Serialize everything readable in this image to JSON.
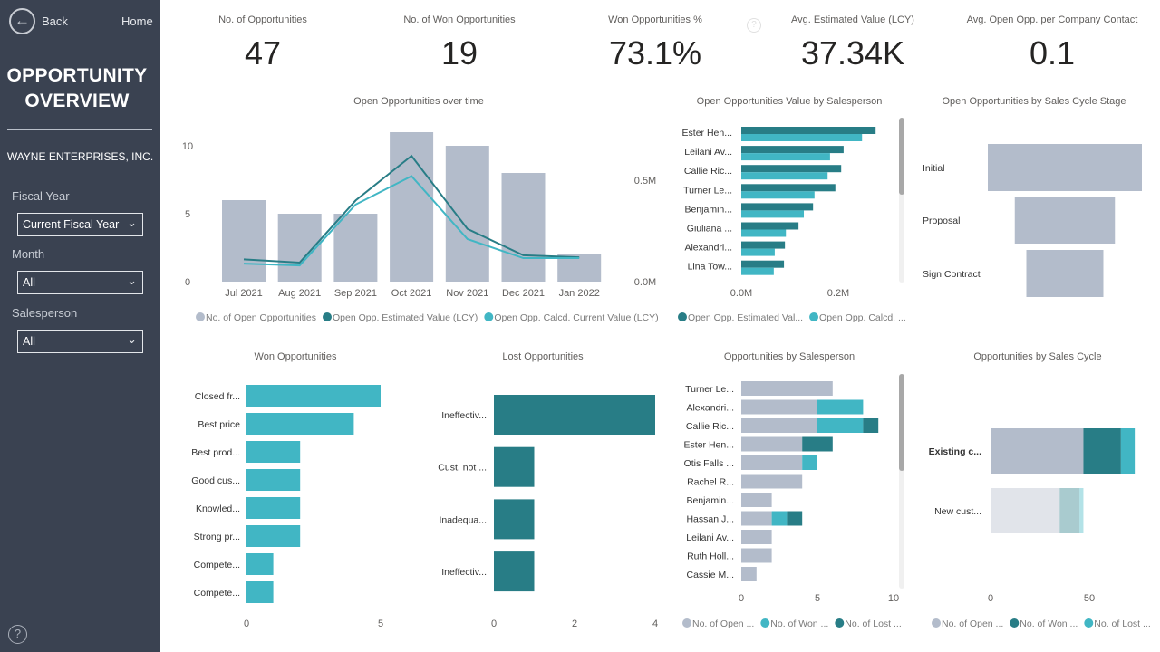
{
  "sidebar": {
    "back_label": "Back",
    "home_label": "Home",
    "title_line1": "OPPORTUNITY",
    "title_line2": "OVERVIEW",
    "company": "WAYNE ENTERPRISES, INC.",
    "filters": [
      {
        "label": "Fiscal Year",
        "value": "Current Fiscal Year"
      },
      {
        "label": "Month",
        "value": "All"
      },
      {
        "label": "Salesperson",
        "value": "All"
      }
    ],
    "help_icon": "question-circle-icon"
  },
  "kpis": [
    {
      "label": "No. of Opportunities",
      "value": "47"
    },
    {
      "label": "No. of Won Opportunities",
      "value": "19"
    },
    {
      "label": "Won Opportunities %",
      "value": "73.1%"
    },
    {
      "label": "Avg. Estimated Value (LCY)",
      "value": "37.34K"
    },
    {
      "label": "Avg. Open Opp. per Company Contact",
      "value": "0.1"
    }
  ],
  "colors": {
    "gray": "#b3bccb",
    "dark_teal": "#287d86",
    "light_teal": "#41b6c4",
    "sidebar": "#3a4251"
  },
  "chart_data": [
    {
      "type": "bar+line",
      "title": "Open Opportunities over time",
      "categories": [
        "Jul 2021",
        "Aug 2021",
        "Sep 2021",
        "Oct 2021",
        "Nov 2021",
        "Dec 2021",
        "Jan 2022"
      ],
      "series": [
        {
          "name": "No. of Open Opportunities",
          "type": "bar",
          "axis": "left",
          "color": "#b3bccb",
          "values": [
            6,
            5,
            5,
            11,
            10,
            8,
            2
          ]
        },
        {
          "name": "Open Opp. Estimated Value (LCY)",
          "type": "line",
          "axis": "right",
          "color": "#287d86",
          "values": [
            0.11,
            0.094,
            0.4,
            0.62,
            0.26,
            0.13,
            0.12
          ]
        },
        {
          "name": "Open Opp. Calcd. Current Value (LCY)",
          "type": "line",
          "axis": "right",
          "color": "#41b6c4",
          "values": [
            0.089,
            0.08,
            0.38,
            0.52,
            0.21,
            0.116,
            0.116
          ]
        }
      ],
      "y_ticks": [
        {
          "value": 0,
          "label": "0"
        },
        {
          "value": 5,
          "label": "5"
        },
        {
          "value": 10,
          "label": "10"
        }
      ],
      "y2_ticks": [
        {
          "value": 0,
          "label": "0.0M"
        },
        {
          "value": 0.5,
          "label": "0.5M"
        }
      ],
      "y2_unit": "M",
      "legend": "bottom"
    },
    {
      "type": "bar",
      "orientation": "horizontal",
      "title": "Open Opportunities Value by Salesperson",
      "categories": [
        "Ester Hen...",
        "Leilani Av...",
        "Callie Ric...",
        "Turner Le...",
        "Benjamin...",
        "Giuliana ...",
        "Alexandri...",
        "Lina Tow..."
      ],
      "series": [
        {
          "name": "Open Opp. Estimated Val...",
          "color": "#287d86",
          "values": [
            0.277,
            0.211,
            0.206,
            0.194,
            0.148,
            0.118,
            0.09,
            0.088
          ]
        },
        {
          "name": "Open Opp. Calcd. ...",
          "color": "#41b6c4",
          "values": [
            0.249,
            0.183,
            0.178,
            0.151,
            0.129,
            0.092,
            0.069,
            0.067
          ]
        }
      ],
      "x_ticks": [
        {
          "value": 0,
          "label": "0.0M"
        },
        {
          "value": 0.2,
          "label": "0.2M"
        }
      ],
      "x_unit": "M",
      "legend": "bottom"
    },
    {
      "type": "funnel",
      "title": "Open Opportunities by Sales Cycle Stage",
      "categories": [
        "Initial",
        "Proposal",
        "Sign Contract"
      ],
      "values": [
        20,
        13,
        10
      ],
      "color": "#b3bccb"
    },
    {
      "type": "bar",
      "orientation": "horizontal",
      "title": "Won Opportunities",
      "categories": [
        "Closed fr...",
        "Best price",
        "Best prod...",
        "Good cus...",
        "Knowled...",
        "Strong pr...",
        "Compete...",
        "Compete..."
      ],
      "values": [
        5,
        4,
        2,
        2,
        2,
        2,
        1,
        1
      ],
      "color": "#41b6c4",
      "x_ticks": [
        {
          "value": 0,
          "label": "0"
        },
        {
          "value": 5,
          "label": "5"
        }
      ]
    },
    {
      "type": "bar",
      "orientation": "horizontal",
      "title": "Lost Opportunities",
      "categories": [
        "Ineffectiv...",
        "Cust. not ...",
        "Inadequa...",
        "Ineffectiv..."
      ],
      "values": [
        4,
        1,
        1,
        1
      ],
      "color": "#287d86",
      "x_ticks": [
        {
          "value": 0,
          "label": "0"
        },
        {
          "value": 2,
          "label": "2"
        },
        {
          "value": 4,
          "label": "4"
        }
      ]
    },
    {
      "type": "stacked-bar",
      "orientation": "horizontal",
      "title": "Opportunities by Salesperson",
      "categories": [
        "Turner Le...",
        "Alexandri...",
        "Callie Ric...",
        "Ester Hen...",
        "Otis Falls ...",
        "Rachel R...",
        "Benjamin...",
        "Hassan J...",
        "Leilani Av...",
        "Ruth Holl...",
        "Cassie M..."
      ],
      "series": [
        {
          "name": "No. of Open ...",
          "color": "#b3bccb",
          "values": [
            6,
            5,
            5,
            4,
            4,
            4,
            2,
            2,
            2,
            2,
            1
          ]
        },
        {
          "name": "No. of Won ...",
          "color": "#41b6c4",
          "values": [
            0,
            3,
            3,
            0,
            1,
            0,
            0,
            1,
            0,
            0,
            0
          ]
        },
        {
          "name": "No. of Lost ...",
          "color": "#287d86",
          "values": [
            0,
            0,
            1,
            2,
            0,
            0,
            0,
            1,
            0,
            0,
            0
          ]
        }
      ],
      "x_ticks": [
        {
          "value": 0,
          "label": "0"
        },
        {
          "value": 5,
          "label": "5"
        },
        {
          "value": 10,
          "label": "10"
        }
      ],
      "legend": "bottom"
    },
    {
      "type": "stacked-bar",
      "orientation": "horizontal",
      "title": "Opportunities by Sales Cycle",
      "categories": [
        "Existing c...",
        "New cust..."
      ],
      "highlighted": "Existing c...",
      "series": [
        {
          "name": "No. of Open ...",
          "color": "#b3bccb",
          "values": [
            47,
            35
          ]
        },
        {
          "name": "No. of Won ...",
          "color": "#287d86",
          "values": [
            19,
            10
          ]
        },
        {
          "name": "No. of Lost ...",
          "color": "#41b6c4",
          "values": [
            7,
            2
          ]
        }
      ],
      "x_ticks": [
        {
          "value": 0,
          "label": "0"
        },
        {
          "value": 50,
          "label": "50"
        }
      ],
      "legend": "bottom"
    }
  ]
}
